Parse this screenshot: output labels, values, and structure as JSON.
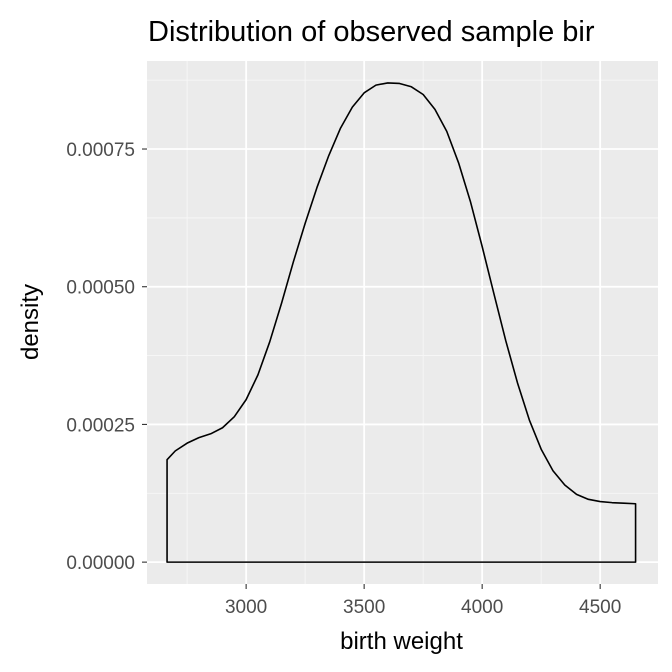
{
  "chart_data": {
    "type": "area",
    "title": "Distribution of observed sample bir",
    "xlabel": "birth weight",
    "ylabel": "density",
    "xlim": [
      2580,
      4745
    ],
    "ylim": [
      -3.97e-05,
      0.0009098
    ],
    "x_ticks": [
      3000,
      3500,
      4000,
      4500
    ],
    "x_tick_labels": [
      "3000",
      "3500",
      "4000",
      "4500"
    ],
    "y_ticks": [
      0,
      0.00025,
      0.0005,
      0.00075
    ],
    "y_tick_labels": [
      "0.00000",
      "0.00025",
      "0.00050",
      "0.00075"
    ],
    "grid": true,
    "series": [
      {
        "color": "#000000",
        "x": [
          2665,
          2700,
          2750,
          2800,
          2850,
          2900,
          2950,
          3000,
          3050,
          3100,
          3150,
          3200,
          3250,
          3300,
          3350,
          3400,
          3450,
          3500,
          3550,
          3600,
          3650,
          3700,
          3750,
          3800,
          3850,
          3900,
          3950,
          4000,
          4050,
          4100,
          4150,
          4200,
          4250,
          4300,
          4350,
          4400,
          4450,
          4500,
          4550,
          4600,
          4650
        ],
        "y": [
          0.000186,
          0.000202,
          0.000216,
          0.000226,
          0.000233,
          0.000244,
          0.000264,
          0.000295,
          0.00034,
          0.0004,
          0.00047,
          0.000545,
          0.000615,
          0.00068,
          0.000738,
          0.000788,
          0.000826,
          0.000852,
          0.000866,
          0.00087,
          0.000869,
          0.000863,
          0.000849,
          0.000822,
          0.000782,
          0.000725,
          0.000655,
          0.000573,
          0.000487,
          0.000402,
          0.000325,
          0.000258,
          0.000205,
          0.000166,
          0.00014,
          0.000123,
          0.000114,
          0.00011,
          0.000108,
          0.000107,
          0.000106
        ]
      }
    ]
  }
}
